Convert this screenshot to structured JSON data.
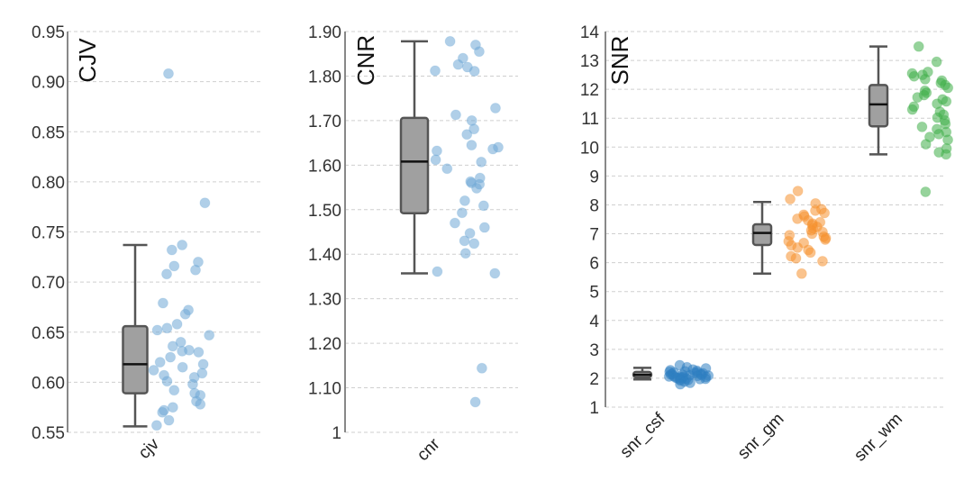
{
  "chart_data": [
    {
      "type": "box",
      "ylabel": "CJV",
      "ylim": [
        0.55,
        0.95
      ],
      "yticks": [
        "0.55",
        "0.60",
        "0.65",
        "0.70",
        "0.75",
        "0.80",
        "0.85",
        "0.90",
        "0.95"
      ],
      "grid": true,
      "categories": [
        "cjv"
      ],
      "boxes": [
        {
          "category": "cjv",
          "min": 0.556,
          "q1": 0.589,
          "median": 0.618,
          "q3": 0.656,
          "max": 0.737,
          "color": "#a0a0a0"
        }
      ],
      "series": [
        {
          "category": "cjv",
          "color": "#6fa8d6",
          "values": [
            0.908,
            0.779,
            0.737,
            0.732,
            0.72,
            0.716,
            0.712,
            0.708,
            0.679,
            0.672,
            0.668,
            0.658,
            0.654,
            0.652,
            0.647,
            0.64,
            0.636,
            0.632,
            0.631,
            0.63,
            0.625,
            0.62,
            0.618,
            0.615,
            0.612,
            0.609,
            0.607,
            0.605,
            0.601,
            0.598,
            0.592,
            0.589,
            0.587,
            0.581,
            0.578,
            0.575,
            0.572,
            0.57,
            0.562,
            0.557
          ]
        }
      ]
    },
    {
      "type": "box",
      "ylabel": "CNR",
      "ylim": [
        1.0,
        1.9
      ],
      "yticks": [
        "1",
        "1.10",
        "1.20",
        "1.30",
        "1.40",
        "1.50",
        "1.60",
        "1.70",
        "1.80",
        "1.90"
      ],
      "grid": true,
      "categories": [
        "cnr"
      ],
      "boxes": [
        {
          "category": "cnr",
          "min": 1.357,
          "q1": 1.492,
          "median": 1.608,
          "q3": 1.706,
          "max": 1.878,
          "color": "#a0a0a0"
        }
      ],
      "series": [
        {
          "category": "cnr",
          "color": "#6fa8d6",
          "values": [
            1.878,
            1.87,
            1.855,
            1.84,
            1.826,
            1.82,
            1.812,
            1.811,
            1.728,
            1.713,
            1.7,
            1.681,
            1.669,
            1.645,
            1.64,
            1.636,
            1.632,
            1.612,
            1.607,
            1.592,
            1.571,
            1.563,
            1.56,
            1.557,
            1.548,
            1.52,
            1.509,
            1.493,
            1.47,
            1.46,
            1.447,
            1.43,
            1.424,
            1.402,
            1.361,
            1.357,
            1.144,
            1.068
          ]
        }
      ]
    },
    {
      "type": "box",
      "ylabel": "SNR",
      "ylim": [
        1,
        14
      ],
      "yticks": [
        "1",
        "2",
        "3",
        "4",
        "5",
        "6",
        "7",
        "8",
        "9",
        "10",
        "11",
        "12",
        "13",
        "14"
      ],
      "grid": true,
      "categories": [
        "snr_csf",
        "snr_gm",
        "snr_wm"
      ],
      "boxes": [
        {
          "category": "snr_csf",
          "min": 1.96,
          "q1": 2.03,
          "median": 2.12,
          "q3": 2.22,
          "max": 2.36,
          "color": "#a0a0a0"
        },
        {
          "category": "snr_gm",
          "min": 5.62,
          "q1": 6.61,
          "median": 7.03,
          "q3": 7.33,
          "max": 8.1,
          "color": "#a0a0a0"
        },
        {
          "category": "snr_wm",
          "min": 9.75,
          "q1": 10.72,
          "median": 11.48,
          "q3": 12.15,
          "max": 13.48,
          "color": "#a0a0a0"
        }
      ],
      "series": [
        {
          "category": "snr_csf",
          "color": "#2f7fc1",
          "values": [
            2.45,
            2.38,
            2.34,
            2.3,
            2.28,
            2.26,
            2.24,
            2.22,
            2.21,
            2.2,
            2.18,
            2.17,
            2.15,
            2.14,
            2.13,
            2.12,
            2.11,
            2.1,
            2.09,
            2.08,
            2.07,
            2.06,
            2.05,
            2.04,
            2.03,
            2.02,
            2.01,
            2.0,
            1.99,
            1.98,
            1.97,
            1.96,
            1.94,
            1.92,
            1.88,
            1.84,
            1.79
          ]
        },
        {
          "category": "snr_gm",
          "color": "#f5922f",
          "values": [
            8.48,
            8.2,
            8.05,
            7.85,
            7.8,
            7.72,
            7.66,
            7.6,
            7.52,
            7.46,
            7.4,
            7.35,
            7.3,
            7.24,
            7.18,
            7.12,
            7.06,
            7.0,
            6.95,
            6.9,
            6.85,
            6.8,
            6.74,
            6.68,
            6.6,
            6.52,
            6.44,
            6.35,
            6.22,
            6.15,
            6.05,
            5.62
          ]
        },
        {
          "category": "snr_wm",
          "color": "#3fae49",
          "values": [
            13.48,
            12.95,
            12.6,
            12.55,
            12.5,
            12.45,
            12.35,
            12.3,
            12.22,
            12.15,
            12.05,
            11.95,
            11.88,
            11.8,
            11.72,
            11.65,
            11.58,
            11.5,
            11.4,
            11.3,
            11.22,
            11.12,
            11.02,
            10.92,
            10.8,
            10.7,
            10.62,
            10.52,
            10.45,
            10.35,
            10.25,
            10.1,
            9.95,
            9.82,
            9.75,
            8.45
          ]
        }
      ]
    }
  ]
}
